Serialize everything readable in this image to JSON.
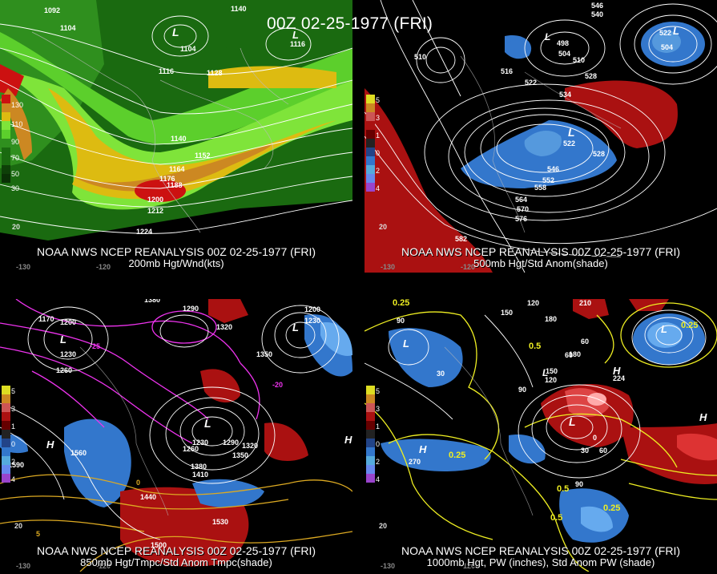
{
  "title": "00Z 02-25-1977 (FRI)",
  "panels": [
    {
      "id": "200mb",
      "line1": "NOAA NWS NCEP REANALYSIS 00Z 02-25-1977 (FRI)",
      "line2": "200mb Hgt/Wnd(kts)",
      "legend": [
        "130",
        "110",
        "90",
        "70",
        "50",
        "30"
      ],
      "contours": [
        "1092",
        "1104",
        "1104",
        "1116",
        "1128",
        "1140",
        "1152",
        "1164",
        "1176",
        "1188",
        "1200",
        "1212",
        "1224",
        "1116",
        "1140"
      ],
      "lows": [
        "L",
        "L"
      ],
      "lon_labels": [
        "-130",
        "-120",
        "20"
      ]
    },
    {
      "id": "500mb",
      "line1": "NOAA NWS NCEP REANALYSIS 00Z 02-25-1977 (FRI)",
      "line2": "500mb Hgt/Std Anom(shade)",
      "legend": [
        "5",
        "4",
        "3",
        "2",
        "1",
        "0",
        "1",
        "2",
        "3",
        "4",
        "5"
      ],
      "contours": [
        "546",
        "540",
        "510",
        "498",
        "504",
        "510",
        "516",
        "522",
        "528",
        "534",
        "546",
        "552",
        "558",
        "564",
        "570",
        "576",
        "582",
        "528",
        "522",
        "504",
        "522"
      ],
      "lows": [
        "L",
        "L",
        "L"
      ],
      "lon_labels": [
        "-130",
        "-120",
        "20"
      ]
    },
    {
      "id": "850mb",
      "line1": "NOAA NWS NCEP REANALYSIS 00Z 02-25-1977 (FRI)",
      "line2": "850mb Hgt/Tmpc/Std Anom Tmpc(shade)",
      "legend": [
        "5",
        "4",
        "3",
        "2",
        "1",
        "0",
        "1",
        "2",
        "3",
        "4",
        "5"
      ],
      "contours": [
        "1380",
        "1170",
        "1200",
        "1230",
        "1260",
        "1290",
        "1320",
        "1350",
        "1230",
        "1260",
        "1290",
        "1320",
        "1350",
        "1380",
        "1410",
        "1440",
        "1500",
        "1530",
        "1560",
        "1590",
        "1200",
        "1230"
      ],
      "temp_labels": [
        "-25",
        "-20",
        "-10",
        "0",
        "5",
        "10"
      ],
      "lows": [
        "L",
        "L",
        "L"
      ],
      "highs": [
        "H",
        "H"
      ],
      "lon_labels": [
        "-130",
        "-120",
        "20"
      ]
    },
    {
      "id": "1000mb",
      "line1": "NOAA NWS NCEP REANALYSIS 00Z 02-25-1977 (FRI)",
      "line2": "1000mb Hgt, PW (inches), Std Anom PW (shade)",
      "legend": [
        "5",
        "4",
        "3",
        "2",
        "1",
        "0",
        "1",
        "2",
        "3",
        "4",
        "5"
      ],
      "contours": [
        "120",
        "150",
        "180",
        "210",
        "90",
        "60",
        "30",
        "0",
        "30",
        "60",
        "90",
        "120",
        "150",
        "180",
        "270",
        "224",
        "60",
        "90"
      ],
      "pw_labels": [
        "0.25",
        "0.25",
        "0.5",
        "0.5",
        "0.25",
        "0.25",
        "0.5"
      ],
      "lows": [
        "L",
        "L",
        "L",
        "L"
      ],
      "highs": [
        "H",
        "H",
        "H"
      ],
      "lon_labels": [
        "-130",
        "-120",
        "20"
      ]
    }
  ],
  "colors": {
    "background": "#000000",
    "contour": "#ffffff",
    "wind_light": "#66dd33",
    "wind_mid": "#33aa22",
    "wind_yellow": "#ddbb11",
    "wind_orange": "#cc8822",
    "wind_red": "#cc1111",
    "anom_pos": "#aa1111",
    "anom_neg": "#3377cc",
    "temp_contour": "#ee33ee",
    "pw_contour": "#eeee22"
  }
}
